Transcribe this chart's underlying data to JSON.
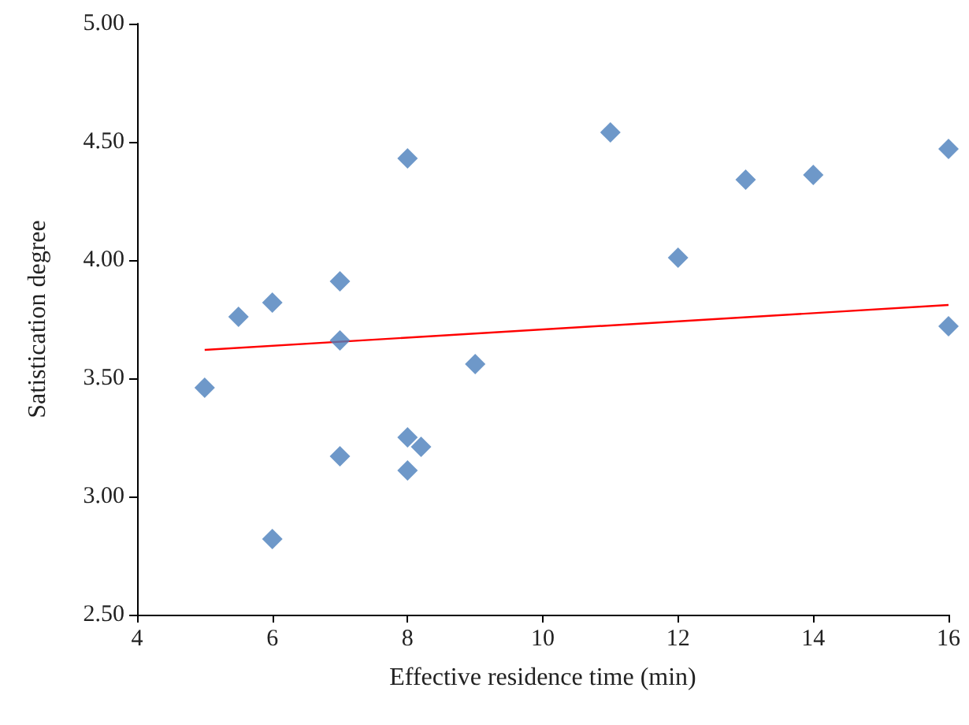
{
  "chart_data": {
    "type": "scatter",
    "xlabel": "Effective residence time (min)",
    "ylabel": "Satistication degree",
    "x": [
      5,
      5.5,
      6,
      6,
      7,
      7,
      7,
      8,
      8,
      8,
      8.2,
      9,
      11,
      12,
      13,
      14,
      16,
      16
    ],
    "series": [
      {
        "color": "#4a7ebb",
        "marker": "diamond",
        "values": [
          3.46,
          3.76,
          3.82,
          2.82,
          3.91,
          3.66,
          3.17,
          4.43,
          3.25,
          3.11,
          3.21,
          3.56,
          4.54,
          4.01,
          4.34,
          4.36,
          4.47,
          3.72
        ]
      },
      {
        "type": "line",
        "color": "#ff0000",
        "marker": "none",
        "x": [
          5,
          16
        ],
        "values": [
          3.62,
          3.81
        ]
      }
    ],
    "xlim": [
      4,
      16
    ],
    "xticks": [
      4,
      6,
      8,
      10,
      12,
      14,
      16
    ],
    "ylim": [
      2.5,
      5
    ],
    "yticks": [
      {
        "value": 2.5,
        "label": "2.50"
      },
      {
        "value": 3,
        "label": "3.00"
      },
      {
        "value": 3.5,
        "label": "3.50"
      },
      {
        "value": 4,
        "label": "4.00"
      },
      {
        "value": 4.5,
        "label": "4.50"
      },
      {
        "value": 5,
        "label": "5.00"
      }
    ],
    "grid": false
  }
}
